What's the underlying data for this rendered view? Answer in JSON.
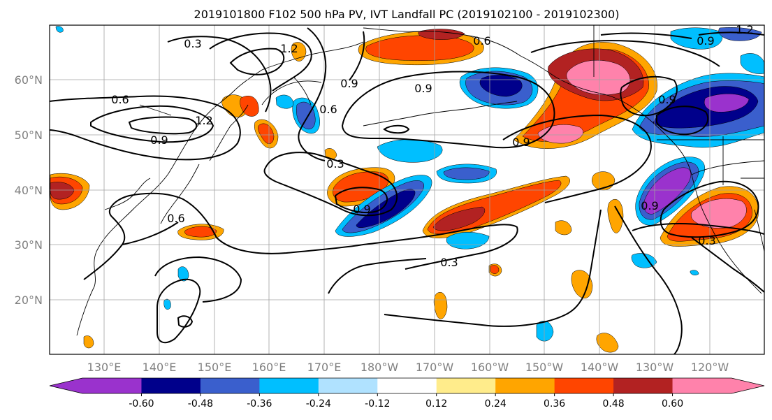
{
  "title": "2019101800 F102 500 hPa PV, IVT Landfall PC (2019102100 - 2019102300)",
  "lon_labels": [
    "130°E",
    "140°E",
    "150°E",
    "160°E",
    "170°E",
    "180°W",
    "170°W",
    "160°W",
    "150°W",
    "140°W",
    "130°W",
    "120°W"
  ],
  "lat_labels": [
    "60°N",
    "50°N",
    "40°N",
    "30°N",
    "20°N"
  ],
  "colorbar": {
    "colors": [
      "#9a32cd",
      "#00008b",
      "#3a5fcd",
      "#00bfff",
      "#b0e2ff",
      "#ffffff",
      "#ffec8b",
      "#ffa500",
      "#ff4500",
      "#b22222",
      "#ff82ab"
    ],
    "tick_labels": [
      "-0.60",
      "-0.48",
      "-0.36",
      "-0.24",
      "-0.12",
      "0.12",
      "0.24",
      "0.36",
      "0.48",
      "0.60"
    ]
  },
  "contour_labels": [
    "0.3",
    "1.2",
    "0.6",
    "0.9",
    "0.6",
    "1.2",
    "0.9",
    "0.9",
    "0.9",
    "0.6",
    "0.3",
    "0.9",
    "0.6",
    "0.3",
    "0.3",
    "0.9",
    "0.9",
    "0.9",
    "1.2"
  ]
}
